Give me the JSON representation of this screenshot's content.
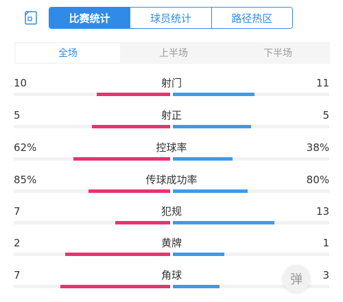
{
  "tabs": [
    {
      "label": "比赛统计",
      "active": true
    },
    {
      "label": "球员统计",
      "active": false
    },
    {
      "label": "路径热区",
      "active": false
    }
  ],
  "periods": [
    {
      "label": "全场",
      "active": true
    },
    {
      "label": "上半场",
      "active": false
    },
    {
      "label": "下半场",
      "active": false
    }
  ],
  "colors": {
    "home": "#e8336d",
    "away": "#3d9be9",
    "accent": "#2f8ae8"
  },
  "stats": [
    {
      "name": "射门",
      "home": "10",
      "away": "11",
      "home_frac": 0.47,
      "away_frac": 0.52
    },
    {
      "name": "射正",
      "home": "5",
      "away": "5",
      "home_frac": 0.5,
      "away_frac": 0.5
    },
    {
      "name": "控球率",
      "home": "62%",
      "away": "38%",
      "home_frac": 0.62,
      "away_frac": 0.38
    },
    {
      "name": "传球成功率",
      "home": "85%",
      "away": "80%",
      "home_frac": 0.52,
      "away_frac": 0.48
    },
    {
      "name": "犯规",
      "home": "7",
      "away": "13",
      "home_frac": 0.35,
      "away_frac": 0.65
    },
    {
      "name": "黄牌",
      "home": "2",
      "away": "1",
      "home_frac": 0.67,
      "away_frac": 0.33
    },
    {
      "name": "角球",
      "home": "7",
      "away": "3",
      "home_frac": 0.7,
      "away_frac": 0.3
    }
  ],
  "danmu_label": "弹"
}
